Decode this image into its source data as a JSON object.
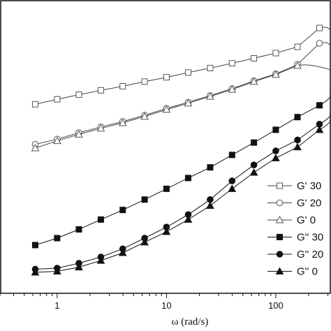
{
  "chart_data": {
    "type": "line",
    "title": "",
    "xlabel": "ω (rad/s)",
    "ylabel": "",
    "x_scale": "log",
    "xlim": [
      0.3,
      320
    ],
    "x_ticks": [
      {
        "value": 1,
        "label": "1"
      },
      {
        "value": 10,
        "label": "10"
      },
      {
        "value": 100,
        "label": "100"
      }
    ],
    "y_scale": "log",
    "ylim": [
      0.5,
      30
    ],
    "legend_position": "right",
    "series": [
      {
        "name": "G' 30",
        "marker": "square-open",
        "x": [
          0.63,
          1.0,
          1.58,
          2.51,
          3.98,
          6.31,
          10.0,
          15.8,
          25.1,
          39.8,
          63.1,
          100.0,
          158.0,
          251.0
        ],
        "y": [
          7.0,
          7.5,
          8.0,
          8.5,
          9.0,
          9.6,
          10.2,
          10.9,
          11.6,
          12.4,
          13.3,
          14.3,
          15.6,
          20.3
        ]
      },
      {
        "name": "G' 20",
        "marker": "circle-open",
        "x": [
          0.63,
          1.0,
          1.58,
          2.51,
          3.98,
          6.31,
          10.0,
          15.8,
          25.1,
          39.8,
          63.1,
          100.0,
          158.0,
          251.0
        ],
        "y": [
          4.0,
          4.3,
          4.7,
          5.1,
          5.5,
          6.0,
          6.6,
          7.2,
          7.9,
          8.7,
          9.7,
          10.7,
          12.2,
          16.4
        ]
      },
      {
        "name": "G' 0",
        "marker": "triangle-open",
        "x": [
          0.63,
          1.0,
          1.58,
          2.51,
          3.98,
          6.31,
          10.0,
          15.8,
          25.1,
          39.8,
          63.1,
          100.0,
          158.0
        ],
        "y": [
          3.8,
          4.2,
          4.6,
          5.0,
          5.4,
          5.9,
          6.5,
          7.1,
          7.8,
          8.6,
          9.6,
          10.6,
          12.0
        ]
      },
      {
        "name": "G'' 30",
        "marker": "square-filled",
        "x": [
          0.63,
          1.0,
          1.58,
          2.51,
          3.98,
          6.31,
          10.0,
          15.8,
          25.1,
          39.8,
          63.1,
          100.0,
          158.0,
          251.0
        ],
        "y": [
          0.98,
          1.08,
          1.22,
          1.4,
          1.6,
          1.85,
          2.15,
          2.5,
          2.9,
          3.45,
          4.1,
          4.9,
          5.85,
          6.9
        ]
      },
      {
        "name": "G'' 20",
        "marker": "circle-filled",
        "x": [
          0.63,
          1.0,
          1.58,
          2.51,
          3.98,
          6.31,
          10.0,
          15.8,
          25.1,
          39.8,
          63.1,
          100.0,
          158.0,
          251.0
        ],
        "y": [
          0.7,
          0.71,
          0.76,
          0.83,
          0.93,
          1.08,
          1.26,
          1.5,
          1.85,
          2.4,
          3.0,
          3.65,
          4.25,
          5.3
        ]
      },
      {
        "name": "G'' 0",
        "marker": "triangle-filled",
        "x": [
          0.63,
          1.0,
          1.58,
          2.51,
          3.98,
          6.31,
          10.0,
          15.8,
          25.1,
          39.8,
          63.1,
          100.0,
          158.0,
          251.0
        ],
        "y": [
          0.67,
          0.68,
          0.72,
          0.79,
          0.88,
          1.02,
          1.18,
          1.4,
          1.7,
          2.15,
          2.7,
          3.3,
          3.85,
          4.9
        ]
      }
    ]
  }
}
